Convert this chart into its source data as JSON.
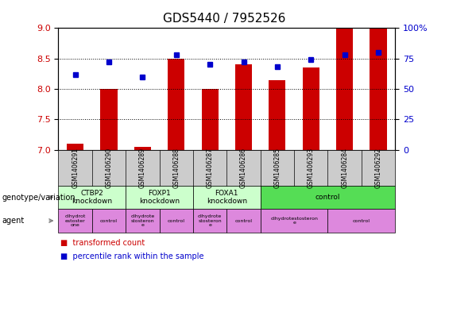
{
  "title": "GDS5440 / 7952526",
  "samples": [
    "GSM1406291",
    "GSM1406290",
    "GSM1406289",
    "GSM1406288",
    "GSM1406287",
    "GSM1406286",
    "GSM1406285",
    "GSM1406293",
    "GSM1406284",
    "GSM1406292"
  ],
  "transformed_count": [
    7.1,
    8.0,
    7.05,
    8.5,
    8.0,
    8.4,
    8.15,
    8.35,
    9.0,
    9.0
  ],
  "percentile_rank": [
    62,
    72,
    60,
    78,
    70,
    72,
    68,
    74,
    78,
    80
  ],
  "ylim_left": [
    7.0,
    9.0
  ],
  "ylim_right": [
    0,
    100
  ],
  "yticks_left": [
    7.0,
    7.5,
    8.0,
    8.5,
    9.0
  ],
  "yticks_right": [
    0,
    25,
    50,
    75,
    100
  ],
  "bar_color": "#cc0000",
  "dot_color": "#0000cc",
  "bar_bottom": 7.0,
  "genotype_groups": [
    {
      "label": "CTBP2\nknockdown",
      "start": 0,
      "end": 2,
      "color": "#ccffcc"
    },
    {
      "label": "FOXP1\nknockdown",
      "start": 2,
      "end": 4,
      "color": "#ccffcc"
    },
    {
      "label": "FOXA1\nknockdown",
      "start": 4,
      "end": 6,
      "color": "#ccffcc"
    },
    {
      "label": "control",
      "start": 6,
      "end": 10,
      "color": "#55dd55"
    }
  ],
  "agent_groups": [
    {
      "label": "dihydrot\nestoster\none",
      "start": 0,
      "end": 1,
      "color": "#dd88dd"
    },
    {
      "label": "control",
      "start": 1,
      "end": 2,
      "color": "#dd88dd"
    },
    {
      "label": "dihydrote\nstosteron\ne",
      "start": 2,
      "end": 3,
      "color": "#dd88dd"
    },
    {
      "label": "control",
      "start": 3,
      "end": 4,
      "color": "#dd88dd"
    },
    {
      "label": "dihydrote\nstosteron\ne",
      "start": 4,
      "end": 5,
      "color": "#dd88dd"
    },
    {
      "label": "control",
      "start": 5,
      "end": 6,
      "color": "#dd88dd"
    },
    {
      "label": "dihydrotestosteron\ne",
      "start": 6,
      "end": 8,
      "color": "#dd88dd"
    },
    {
      "label": "control",
      "start": 8,
      "end": 10,
      "color": "#dd88dd"
    }
  ],
  "left_label_color": "#cc0000",
  "right_label_color": "#0000cc",
  "background_color": "#ffffff",
  "sample_bg_color": "#cccccc",
  "geno_label": "genotype/variation",
  "agent_label": "agent"
}
